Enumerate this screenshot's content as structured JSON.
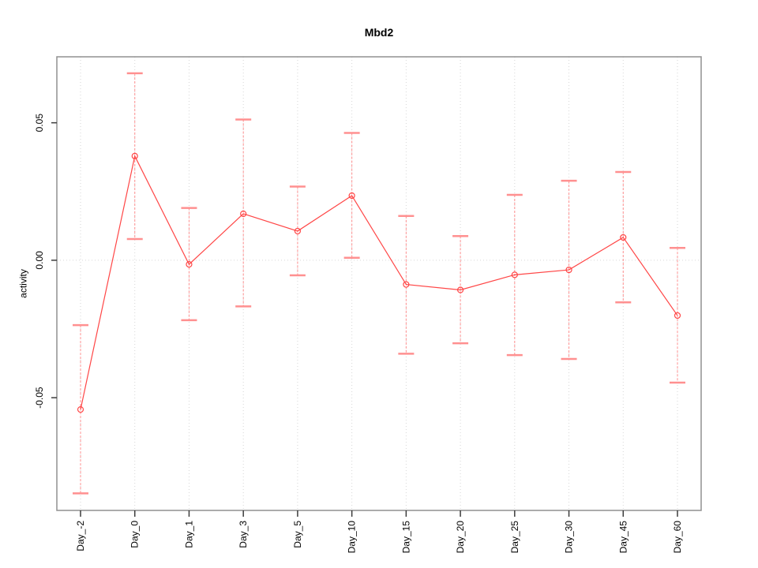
{
  "chart_data": {
    "type": "line",
    "title": "Mbd2",
    "xlabel": "",
    "ylabel": "activity",
    "categories": [
      "Day_-2",
      "Day_0",
      "Day_1",
      "Day_3",
      "Day_5",
      "Day_10",
      "Day_15",
      "Day_20",
      "Day_25",
      "Day_30",
      "Day_45",
      "Day_60"
    ],
    "values": [
      -0.0543,
      0.0379,
      -0.0015,
      0.0169,
      0.0106,
      0.0235,
      -0.0088,
      -0.0108,
      -0.0053,
      -0.0035,
      0.0083,
      -0.0201
    ],
    "error_high": [
      -0.0236,
      0.068,
      0.019,
      0.0512,
      0.0268,
      0.0463,
      0.0161,
      0.0088,
      0.0238,
      0.0289,
      0.0321,
      0.0045
    ],
    "error_low": [
      -0.0848,
      0.0077,
      -0.0218,
      -0.0168,
      -0.0055,
      0.0009,
      -0.034,
      -0.0302,
      -0.0345,
      -0.0359,
      -0.0153,
      -0.0445
    ],
    "yticks": [
      -0.05,
      0,
      0.05
    ],
    "ytick_labels": [
      "-0.05",
      "0.00",
      "0.05"
    ],
    "ylim": [
      -0.091,
      0.074
    ],
    "grid": {
      "vertical": "dotted at every category",
      "horizontal": "dotted at 0.00"
    },
    "legend": "none",
    "marker": "open-circle",
    "colors": {
      "series": "#ff4646",
      "error_bar": "#ff9090",
      "gridline": "#d6d6d6",
      "plot_border": "#909090",
      "tick": "#3c3c3c",
      "text": "#000000",
      "background": "#ffffff"
    }
  }
}
